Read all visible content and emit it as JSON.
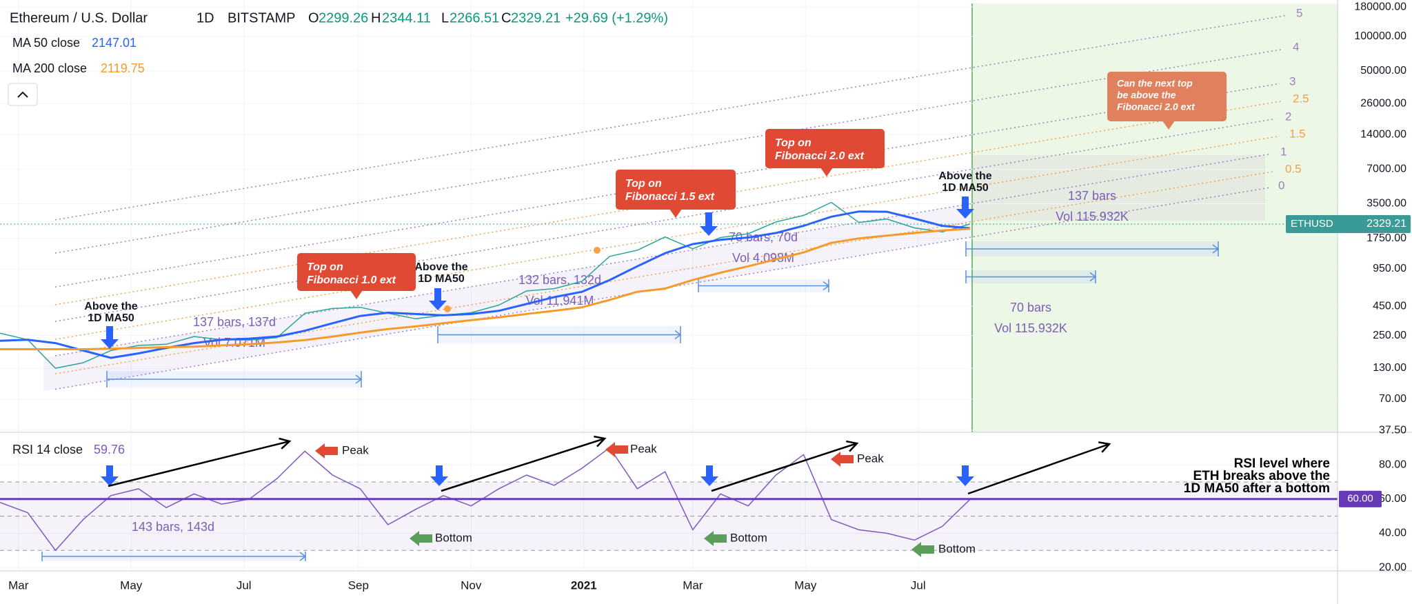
{
  "chart_data": [
    {
      "type": "line",
      "title": "Ethereum / U.S. Dollar",
      "interval": "1D",
      "exchange": "BITSTAMP",
      "ohlc": [
        {
          "label": "O",
          "value": 2299.26
        },
        {
          "label": "H",
          "value": 2344.11
        },
        {
          "label": "L",
          "value": 2266.51
        },
        {
          "label": "C",
          "value": 2329.21
        }
      ],
      "change": "+29.69 (+1.29%)",
      "x": [
        0,
        15,
        30,
        45,
        60,
        75,
        90,
        105,
        120,
        135,
        150,
        165,
        180,
        195,
        210,
        225,
        240,
        255,
        270,
        285,
        300,
        315,
        330,
        345,
        360,
        375,
        390,
        405,
        420,
        435,
        450,
        465,
        480,
        495,
        510,
        525
      ],
      "series": [
        {
          "name": "ETHUSD",
          "color": "#26a69a",
          "values": [
            262,
            230,
            130,
            145,
            185,
            205,
            210,
            245,
            230,
            228,
            240,
            390,
            430,
            440,
            390,
            350,
            375,
            395,
            460,
            610,
            640,
            740,
            1220,
            1380,
            1800,
            1420,
            1780,
            1920,
            2430,
            2770,
            3600,
            2400,
            2580,
            2160,
            1990,
            2329.21
          ]
        },
        {
          "name": "MA 50 close",
          "color": "#2962ff",
          "values": [
            225,
            230,
            215,
            185,
            160,
            175,
            195,
            215,
            230,
            235,
            245,
            275,
            320,
            370,
            395,
            385,
            375,
            385,
            410,
            470,
            540,
            600,
            760,
            1000,
            1300,
            1560,
            1700,
            1780,
            1950,
            2250,
            2700,
            3000,
            2980,
            2600,
            2250,
            2147.01
          ]
        },
        {
          "name": "MA 200 close",
          "color": "#f59b2b",
          "values": [
            190,
            190,
            190,
            190,
            192,
            195,
            198,
            200,
            205,
            210,
            218,
            228,
            245,
            265,
            285,
            300,
            320,
            340,
            360,
            385,
            410,
            440,
            510,
            600,
            640,
            760,
            880,
            1000,
            1150,
            1320,
            1600,
            1750,
            1850,
            1950,
            2050,
            2119.75
          ]
        }
      ],
      "xlim": [
        0,
        724
      ],
      "ylim": [
        36,
        207000
      ],
      "log_scale": true,
      "grid": true,
      "yticks": [
        {
          "value": 180000,
          "label": "180000.00"
        },
        {
          "value": 100000,
          "label": "100000.00"
        },
        {
          "value": 50000,
          "label": "50000.00"
        },
        {
          "value": 26000,
          "label": "26000.00"
        },
        {
          "value": 14000,
          "label": "14000.00"
        },
        {
          "value": 7000,
          "label": "7000.00"
        },
        {
          "value": 3500,
          "label": "3500.00"
        },
        {
          "value": 1750,
          "label": "1750.00"
        },
        {
          "value": 950,
          "label": "950.00"
        },
        {
          "value": 450,
          "label": "450.00"
        },
        {
          "value": 250,
          "label": "250.00"
        },
        {
          "value": 130,
          "label": "130.00"
        },
        {
          "value": 70,
          "label": "70.00"
        },
        {
          "value": 37.5,
          "label": "37.50"
        }
      ],
      "fib_levels": [
        {
          "level": 5,
          "color": "#9c7fc0"
        },
        {
          "level": 4,
          "color": "#9c7fc0"
        },
        {
          "level": 3,
          "color": "#9c7fc0"
        },
        {
          "level": 2.5,
          "color": "#f0a04b"
        },
        {
          "level": 2,
          "color": "#9c7fc0"
        },
        {
          "level": 1.5,
          "color": "#f0a04b"
        },
        {
          "level": 1,
          "color": "#9c7fc0"
        },
        {
          "level": 0.5,
          "color": "#f0a04b"
        },
        {
          "level": 0,
          "color": "#9c7fc0"
        }
      ]
    },
    {
      "type": "line",
      "x": [
        0,
        15,
        30,
        45,
        60,
        75,
        90,
        105,
        120,
        135,
        150,
        165,
        180,
        195,
        210,
        225,
        240,
        255,
        270,
        285,
        300,
        315,
        330,
        345,
        360,
        375,
        390,
        405,
        420,
        435,
        450,
        465,
        480,
        495,
        510,
        525
      ],
      "series": [
        {
          "name": "RSI 14 close",
          "color": "#7e57c2",
          "values": [
            58,
            52,
            30,
            48,
            62,
            66,
            55,
            63,
            57,
            60,
            72,
            88,
            74,
            66,
            45,
            54,
            62,
            56,
            66,
            74,
            68,
            78,
            90,
            66,
            76,
            42,
            63,
            56,
            74,
            86,
            48,
            42,
            40,
            36,
            44,
            59.76
          ]
        }
      ],
      "xlim": [
        0,
        724
      ],
      "ylim": [
        18,
        99
      ],
      "grid": true,
      "xticks": [
        {
          "value": 10,
          "label": "Mar"
        },
        {
          "value": 71,
          "label": "May"
        },
        {
          "value": 132,
          "label": "Jul"
        },
        {
          "value": 194,
          "label": "Sep"
        },
        {
          "value": 255,
          "label": "Nov"
        },
        {
          "value": 316,
          "label": "2021",
          "bold": true
        },
        {
          "value": 375,
          "label": "Mar"
        },
        {
          "value": 436,
          "label": "May"
        },
        {
          "value": 497,
          "label": "Jul"
        }
      ],
      "yticks": [
        {
          "value": 80,
          "label": "80.00"
        },
        {
          "value": 60,
          "label": "60.00"
        },
        {
          "value": 40,
          "label": "40.00"
        },
        {
          "value": 20,
          "label": "20.00"
        }
      ],
      "bands": [
        70,
        50,
        30
      ],
      "level": {
        "value": 60,
        "label": "60.00",
        "color": "#673ab7"
      }
    }
  ],
  "annotations": {
    "above_ma50": [
      [
        "Above the",
        "1D MA50"
      ],
      [
        "Above the",
        "1D MA50"
      ],
      [
        "Above the",
        "1D MA50"
      ]
    ],
    "callouts": [
      [
        "Top on",
        "Fibonacci 1.0 ext"
      ],
      [
        "Top on",
        "Fibonacci 1.5 ext"
      ],
      [
        "Top on",
        "Fibonacci 2.0 ext"
      ],
      [
        "Can the next top",
        "be above the",
        "Fibonacci 2.0 ext"
      ]
    ],
    "measures": [
      [
        "137 bars, 137d",
        "Vol 7.071M"
      ],
      [
        "132 bars, 132d",
        "Vol 11.941M"
      ],
      [
        "70 bars, 70d",
        "Vol 4.098M"
      ],
      [
        "137 bars",
        "Vol 115.932K"
      ],
      [
        "70 bars",
        "Vol 115.932K"
      ],
      [
        "143 bars, 143d"
      ]
    ],
    "peaks": [
      "Peak",
      "Peak",
      "Peak"
    ],
    "bottoms": [
      "Bottom",
      "Bottom",
      "Bottom"
    ],
    "rsi_note": [
      "RSI level where",
      "ETH breaks above the",
      "1D MA50 after a bottom"
    ]
  }
}
